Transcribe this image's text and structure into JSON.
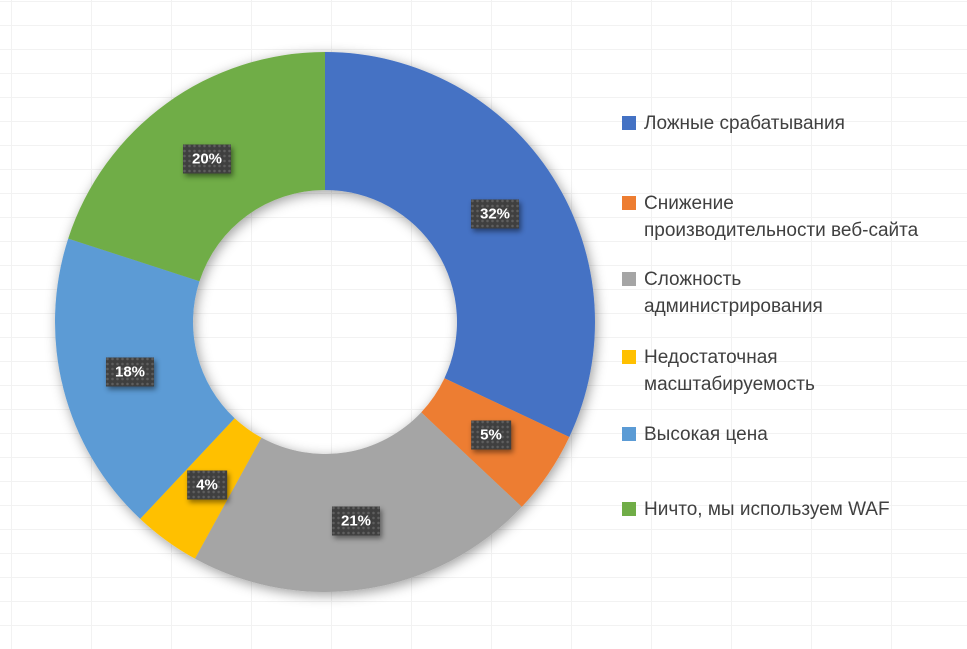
{
  "chart_data": {
    "type": "pie",
    "subtype": "donut",
    "title": "",
    "values_unit": "percent",
    "direction": "clockwise",
    "start_angle_deg": 0,
    "hole_ratio": 0.49,
    "legend_position": "right",
    "grid_background": true,
    "segments": [
      {
        "label": "Ложные срабатывания",
        "value": 32,
        "pct_label": "32%",
        "color": "#4472C4"
      },
      {
        "label": "Снижение\nпроизводительности веб-сайта",
        "value": 5,
        "pct_label": "5%",
        "color": "#ED7D31"
      },
      {
        "label": "Сложность\nадминистрирования",
        "value": 21,
        "pct_label": "21%",
        "color": "#A5A5A5"
      },
      {
        "label": "Недостаточная\nмасштабируемость",
        "value": 4,
        "pct_label": "4%",
        "color": "#FFC000"
      },
      {
        "label": "Высокая цена",
        "value": 18,
        "pct_label": "18%",
        "color": "#5B9BD5"
      },
      {
        "label": "Ничто, мы используем WAF",
        "value": 20,
        "pct_label": "20%",
        "color": "#70AD47"
      }
    ]
  },
  "colors": {
    "background": "#FFFFFF",
    "grid_line": "#F2F2F2",
    "label_chip_bg": "#3F3F3F",
    "label_chip_text": "#FFFFFF",
    "legend_text": "#404040"
  }
}
